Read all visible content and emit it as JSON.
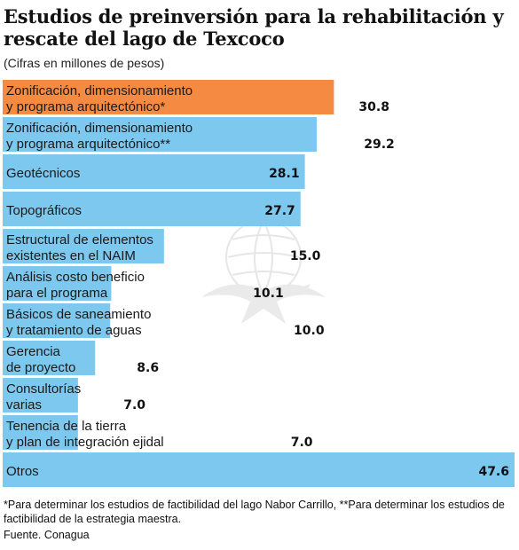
{
  "title": "Estudios de preinversión para la rehabilitación y rescate del lago de Texcoco",
  "subtitle": "(Cifras  en millones de pesos)",
  "footnote": "*Para determinar los estudios de factibilidad del lago Nabor Carrillo, **Para determinar los estudios de factibilidad de la estrategia maestra.",
  "source": "Fuente. Conagua",
  "colors": {
    "highlight": "#f58a42",
    "bar": "#7cc8ef",
    "watermark": "#d9d9d9"
  },
  "chart_data": {
    "type": "bar",
    "orientation": "horizontal",
    "title": "Estudios de preinversión para la rehabilitación y rescate del lago de Texcoco",
    "subtitle": "(Cifras  en millones de pesos)",
    "categories": [
      [
        "Zonificación, dimensionamiento",
        "y programa arquitectónico*"
      ],
      [
        "Zonificación, dimensionamiento",
        "y programa arquitectónico**"
      ],
      [
        "Geotécnicos"
      ],
      [
        "Topográficos"
      ],
      [
        "Estructural de elementos",
        "existentes en el NAIM"
      ],
      [
        "Análisis costo beneficio",
        "para el programa"
      ],
      [
        "Básicos de saneamiento",
        "y tratamiento de aguas"
      ],
      [
        "Gerencia",
        "de proyecto"
      ],
      [
        "Consultorías",
        "varias"
      ],
      [
        "Tenencia de la tierra",
        "y plan de integración ejidal"
      ],
      [
        "Otros"
      ]
    ],
    "values": [
      30.8,
      29.2,
      28.1,
      27.7,
      15.0,
      10.1,
      10.0,
      8.6,
      7.0,
      7.0,
      47.6
    ],
    "value_labels": [
      "30.8",
      "29.2",
      "28.1",
      "27.7",
      "15.0",
      "10.1",
      "10.0",
      "8.6",
      "7.0",
      "7.0",
      "47.6"
    ],
    "highlight_index": 0,
    "xlim": [
      0,
      47.6
    ],
    "grid": false,
    "legend": "none"
  }
}
